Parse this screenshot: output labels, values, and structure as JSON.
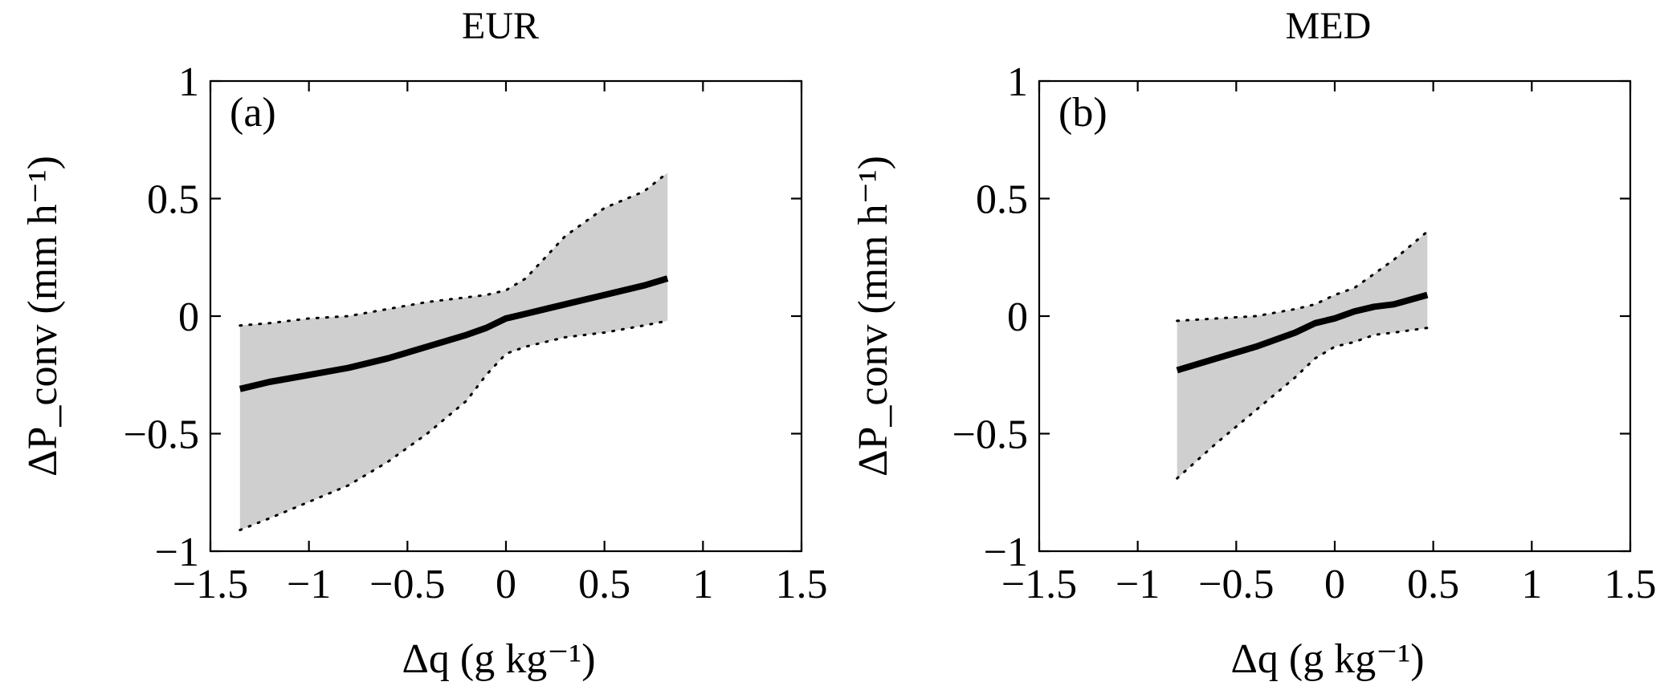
{
  "chart_data": [
    {
      "type": "area",
      "panel_label": "(a)",
      "title": "EUR",
      "xlabel": "Δq (g kg⁻¹)",
      "ylabel": "ΔP_conv (mm h⁻¹)",
      "xlim": [
        -1.5,
        1.5
      ],
      "ylim": [
        -1,
        1
      ],
      "xticks": [
        -1.5,
        -1,
        -0.5,
        0,
        0.5,
        1,
        1.5
      ],
      "yticks": [
        -1,
        -0.5,
        0,
        0.5,
        1
      ],
      "xtick_labels": [
        "−1.5",
        "−1",
        "−0.5",
        "0",
        "0.5",
        "1",
        "1.5"
      ],
      "ytick_labels": [
        "−1",
        "−0.5",
        "0",
        "0.5",
        "1"
      ],
      "grid": false,
      "fill_color": "#cfcfcf",
      "line_color": "#000000",
      "x": [
        -1.35,
        -1.2,
        -1.0,
        -0.8,
        -0.6,
        -0.4,
        -0.2,
        -0.1,
        0.0,
        0.1,
        0.2,
        0.3,
        0.5,
        0.7,
        0.82
      ],
      "series": [
        {
          "values": [
            -0.31,
            -0.28,
            -0.25,
            -0.22,
            -0.18,
            -0.13,
            -0.08,
            -0.05,
            -0.01,
            0.01,
            0.03,
            0.05,
            0.09,
            0.13,
            0.16
          ]
        },
        {
          "values": [
            -0.04,
            -0.03,
            -0.01,
            0.0,
            0.03,
            0.06,
            0.08,
            0.09,
            0.11,
            0.16,
            0.25,
            0.34,
            0.46,
            0.53,
            0.61
          ]
        },
        {
          "values": [
            -0.91,
            -0.86,
            -0.79,
            -0.72,
            -0.62,
            -0.5,
            -0.36,
            -0.25,
            -0.16,
            -0.13,
            -0.11,
            -0.09,
            -0.07,
            -0.04,
            -0.02
          ]
        }
      ]
    },
    {
      "type": "area",
      "panel_label": "(b)",
      "title": "MED",
      "xlabel": "Δq (g kg⁻¹)",
      "ylabel": "ΔP_conv (mm h⁻¹)",
      "xlim": [
        -1.5,
        1.5
      ],
      "ylim": [
        -1,
        1
      ],
      "xticks": [
        -1.5,
        -1,
        -0.5,
        0,
        0.5,
        1,
        1.5
      ],
      "yticks": [
        -1,
        -0.5,
        0,
        0.5,
        1
      ],
      "xtick_labels": [
        "−1.5",
        "−1",
        "−0.5",
        "0",
        "0.5",
        "1",
        "1.5"
      ],
      "ytick_labels": [
        "−1",
        "−0.5",
        "0",
        "0.5",
        "1"
      ],
      "grid": false,
      "fill_color": "#cfcfcf",
      "line_color": "#000000",
      "x": [
        -0.8,
        -0.6,
        -0.4,
        -0.2,
        -0.1,
        0.0,
        0.1,
        0.2,
        0.3,
        0.47
      ],
      "series": [
        {
          "values": [
            -0.23,
            -0.18,
            -0.13,
            -0.07,
            -0.03,
            -0.01,
            0.02,
            0.04,
            0.05,
            0.09
          ]
        },
        {
          "values": [
            -0.02,
            -0.01,
            0.0,
            0.03,
            0.05,
            0.09,
            0.12,
            0.18,
            0.24,
            0.36
          ]
        },
        {
          "values": [
            -0.69,
            -0.54,
            -0.4,
            -0.26,
            -0.18,
            -0.13,
            -0.11,
            -0.08,
            -0.07,
            -0.05
          ]
        }
      ]
    }
  ]
}
